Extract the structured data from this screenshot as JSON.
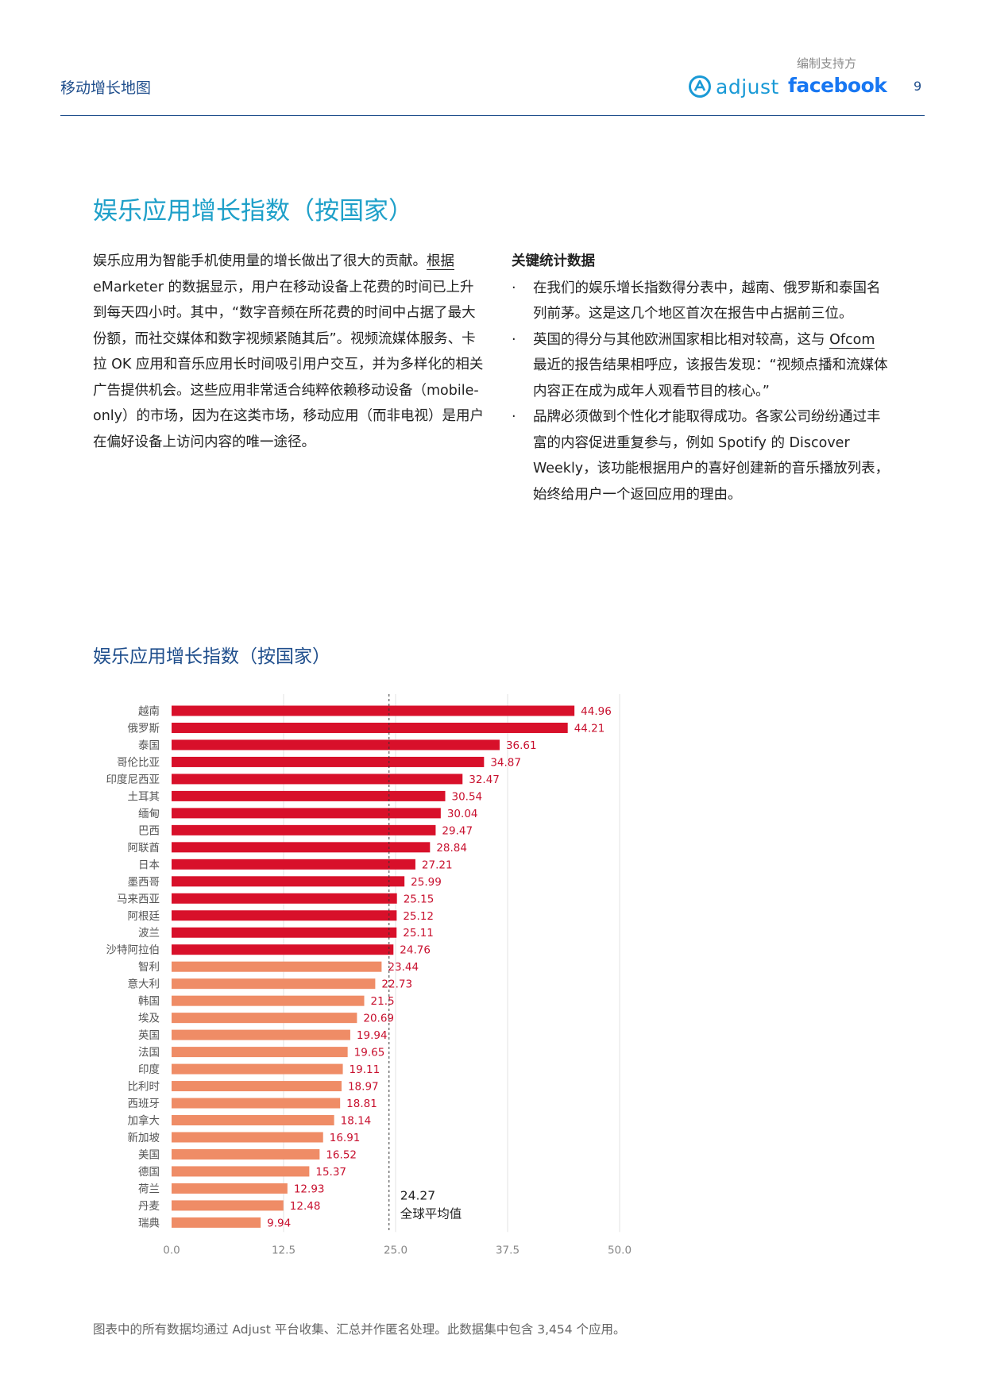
{
  "header": {
    "doc_title": "移动增长地图",
    "sponsor_label": "编制支持方",
    "adjust_logo_text": "adjust",
    "facebook_logo_text": "facebook",
    "page_number": "9"
  },
  "section": {
    "title": "娱乐应用增长指数（按国家）",
    "intro_parts": [
      "娱乐应用为智能手机使用量的增长做出了很大的贡献。",
      "根据",
      " eMarketer 的数据显示，用户在移动设备上花费的时间已上升到每天四小时。其中，“数字音频在所花费的时间中占据了最大份额，而社交媒体和数字视频紧随其后”。视频流媒体服务、卡拉 OK 应用和音乐应用长时间吸引用户交互，并为多样化的相关广告提供机会。这些应用非常适合纯粹依赖移动设备（mobile-only）的市场，因为在这类市场，移动应用（而非电视）是用户在偏好设备上访问内容的唯一途径。"
    ],
    "key_stats": {
      "heading": "关键统计数据",
      "bullet_symbol": "·",
      "item1": "在我们的娱乐增长指数得分表中，越南、俄罗斯和泰国名列前茅。这是这几个地区首次在报告中占据前三位。",
      "item2_before": "英国的得分与其他欧洲国家相比相对较高，这与 ",
      "item2_link": "Ofcom",
      "item2_after": " 最近的报告结果相呼应，该报告发现：“视频点播和流媒体内容正在成为成年人观看节目的核心。”",
      "item3": "品牌必须做到个性化才能取得成功。各家公司纷纷通过丰富的内容促进重复参与，例如 Spotify 的 Discover Weekly，该功能根据用户的喜好创建新的音乐播放列表，始终给用户一个返回应用的理由。"
    }
  },
  "chart_data": {
    "type": "bar",
    "orientation": "horizontal",
    "title": "娱乐应用增长指数（按国家）",
    "categories": [
      "越南",
      "俄罗斯",
      "泰国",
      "哥伦比亚",
      "印度尼西亚",
      "土耳其",
      "缅甸",
      "巴西",
      "阿联酋",
      "日本",
      "墨西哥",
      "马来西亚",
      "阿根廷",
      "波兰",
      "沙特阿拉伯",
      "智利",
      "意大利",
      "韩国",
      "埃及",
      "英国",
      "法国",
      "印度",
      "比利时",
      "西班牙",
      "加拿大",
      "新加坡",
      "美国",
      "德国",
      "荷兰",
      "丹麦",
      "瑞典"
    ],
    "values": [
      44.96,
      44.21,
      36.61,
      34.87,
      32.47,
      30.54,
      30.04,
      29.47,
      28.84,
      27.21,
      25.99,
      25.15,
      25.12,
      25.11,
      24.76,
      23.44,
      22.73,
      21.5,
      20.69,
      19.94,
      19.65,
      19.11,
      18.97,
      18.81,
      18.14,
      16.91,
      16.52,
      15.37,
      12.93,
      12.48,
      9.94
    ],
    "value_labels": [
      "44.96",
      "44.21",
      "36.61",
      "34.87",
      "32.47",
      "30.54",
      "30.04",
      "29.47",
      "28.84",
      "27.21",
      "25.99",
      "25.15",
      "25.12",
      "25.11",
      "24.76",
      "23.44",
      "22.73",
      "21.5",
      "20.69",
      "19.94",
      "19.65",
      "19.11",
      "18.97",
      "18.81",
      "18.14",
      "16.91",
      "16.52",
      "15.37",
      "12.93",
      "12.48",
      "9.94"
    ],
    "xlim": [
      0,
      50
    ],
    "xticks": [
      "0.0",
      "12.5",
      "25.0",
      "37.5",
      "50.0"
    ],
    "grid": true,
    "reference_line": {
      "value": 24.27,
      "value_label": "24.27",
      "label": "全球平均值"
    },
    "colors": {
      "above_avg": "#d8102a",
      "below_avg": "#ef8c66",
      "label": "#c8102e",
      "category": "#555555",
      "tick": "#888888",
      "grid": "#e3e3e3"
    }
  },
  "footnote": "图表中的所有数据均通过 Adjust 平台收集、汇总并作匿名处理。此数据集中包含 3,454 个应用。"
}
